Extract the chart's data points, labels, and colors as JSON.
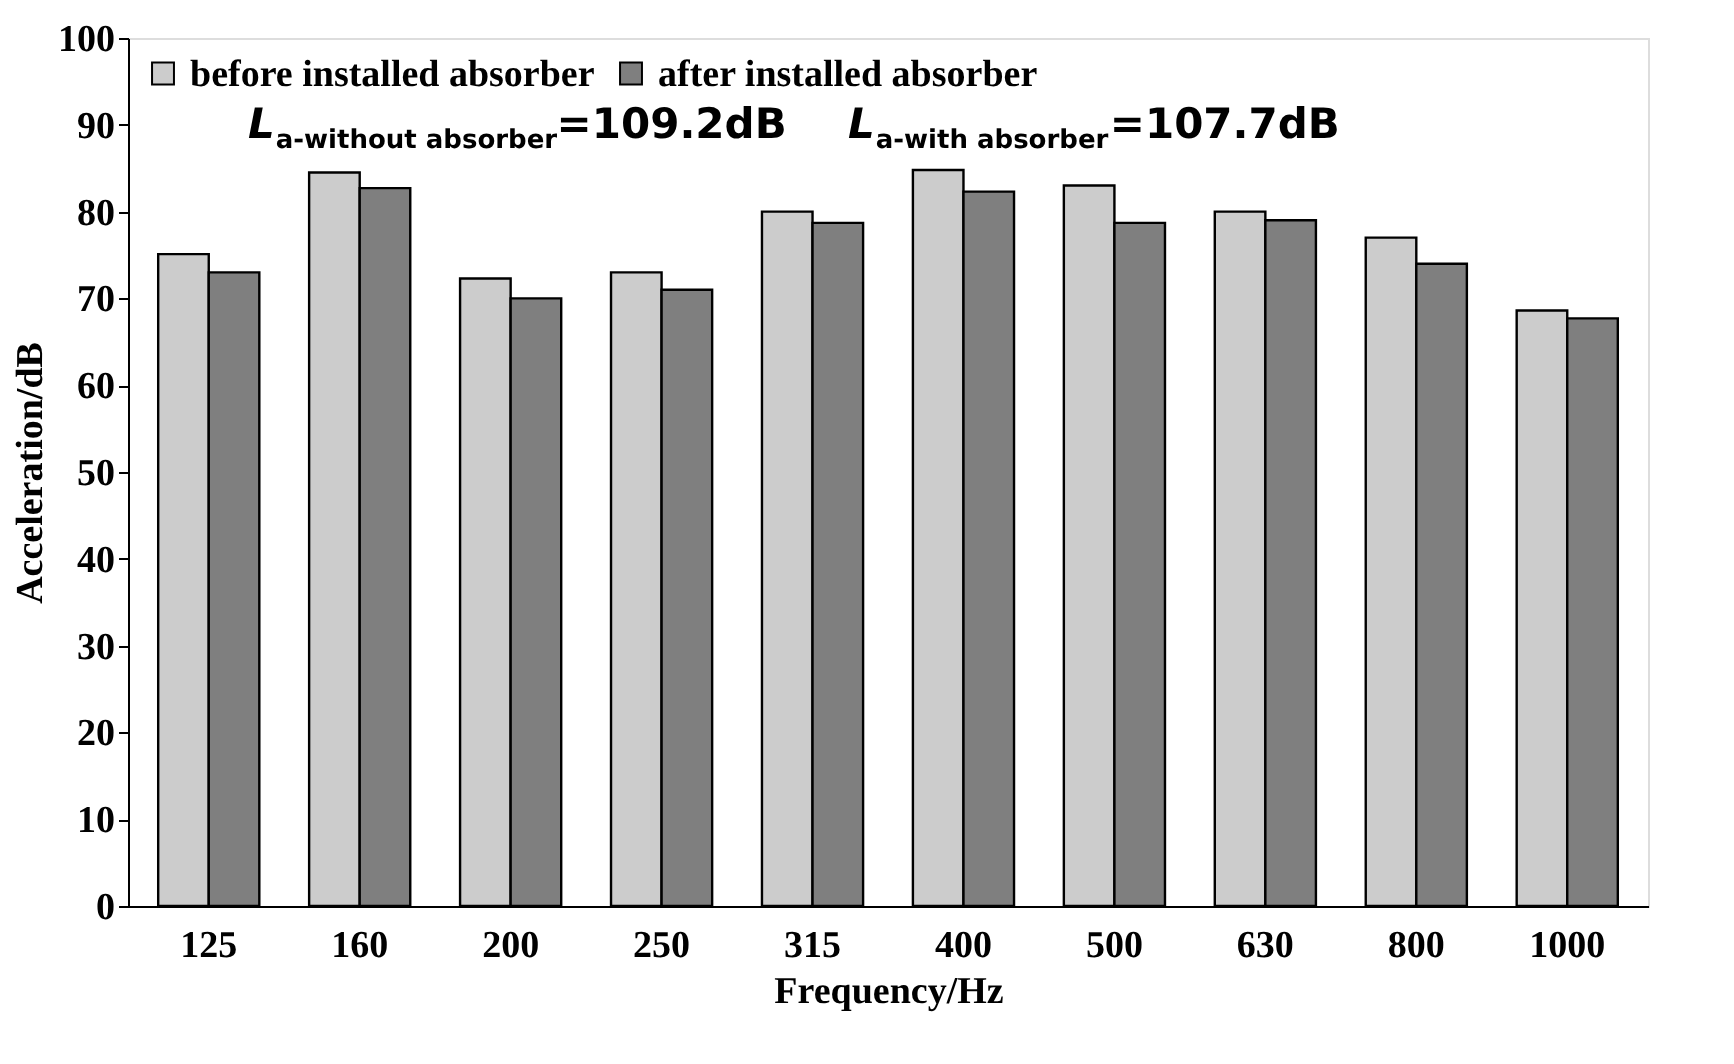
{
  "chart_data": {
    "type": "bar",
    "xlabel": "Frequency/Hz",
    "ylabel": "Acceleration/dB",
    "categories": [
      "125",
      "160",
      "200",
      "250",
      "315",
      "400",
      "500",
      "630",
      "800",
      "1000"
    ],
    "series": [
      {
        "name": "before installed absorber",
        "color": "#cccccc",
        "values": [
          75.1,
          84.5,
          72.3,
          73.0,
          80.0,
          84.8,
          83.0,
          80.0,
          77.0,
          68.6
        ]
      },
      {
        "name": "after installed absorber",
        "color": "#7f7f7f",
        "values": [
          73.0,
          82.7,
          70.0,
          71.0,
          78.7,
          82.3,
          78.7,
          79.0,
          74.0,
          67.7
        ]
      }
    ],
    "ylim": [
      0,
      100
    ],
    "yticks": [
      0,
      10,
      20,
      30,
      40,
      50,
      60,
      70,
      80,
      90,
      100
    ],
    "grid": false,
    "legend": "top left",
    "annotations": [
      "L$_{a-without absorber}$=109.2dB",
      "L$_{a-with absorber}$=107.7dB"
    ]
  }
}
